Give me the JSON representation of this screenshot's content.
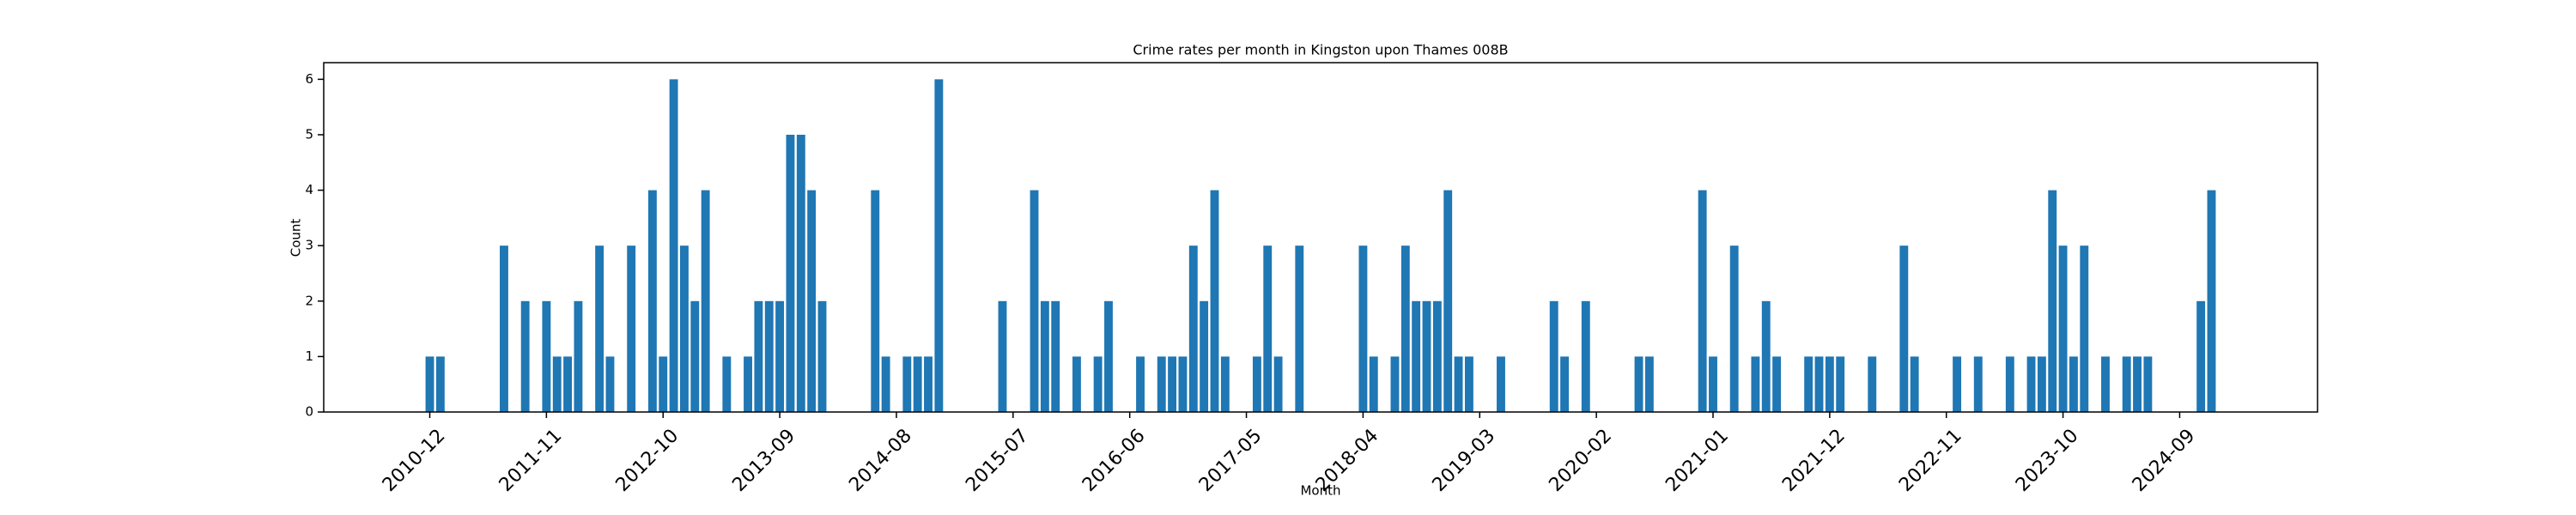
{
  "chart_data": {
    "type": "bar",
    "title": "Crime rates per month in Kingston upon Thames 008B",
    "x_label": "Month",
    "y_label": "Count",
    "color": "#1f77b4",
    "x": [
      "2010-12",
      "2011-01",
      "2011-07",
      "2011-09",
      "2011-11",
      "2011-12",
      "2012-01",
      "2012-02",
      "2012-04",
      "2012-05",
      "2012-07",
      "2012-09",
      "2012-10",
      "2012-11",
      "2012-12",
      "2013-01",
      "2013-02",
      "2013-04",
      "2013-06",
      "2013-07",
      "2013-08",
      "2013-09",
      "2013-10",
      "2013-11",
      "2013-12",
      "2014-01",
      "2014-06",
      "2014-07",
      "2014-09",
      "2014-10",
      "2014-11",
      "2014-12",
      "2015-06",
      "2015-09",
      "2015-10",
      "2015-11",
      "2016-01",
      "2016-03",
      "2016-04",
      "2016-07",
      "2016-09",
      "2016-10",
      "2016-11",
      "2016-12",
      "2017-01",
      "2017-02",
      "2017-03",
      "2017-06",
      "2017-07",
      "2017-08",
      "2017-10",
      "2018-04",
      "2018-05",
      "2018-07",
      "2018-08",
      "2018-09",
      "2018-10",
      "2018-11",
      "2018-12",
      "2019-01",
      "2019-02",
      "2019-05",
      "2019-10",
      "2019-11",
      "2020-01",
      "2020-06",
      "2020-07",
      "2020-12",
      "2021-01",
      "2021-03",
      "2021-05",
      "2021-06",
      "2021-07",
      "2021-10",
      "2021-11",
      "2021-12",
      "2022-01",
      "2022-04",
      "2022-07",
      "2022-08",
      "2022-12",
      "2023-02",
      "2023-05",
      "2023-07",
      "2023-08",
      "2023-09",
      "2023-10",
      "2023-11",
      "2023-12",
      "2024-02",
      "2024-04",
      "2024-05",
      "2024-06",
      "2024-11",
      "2024-12"
    ],
    "values": [
      1,
      1,
      3,
      2,
      2,
      1,
      1,
      2,
      3,
      1,
      3,
      4,
      1,
      6,
      3,
      2,
      4,
      1,
      1,
      2,
      2,
      2,
      5,
      5,
      4,
      2,
      4,
      1,
      1,
      1,
      1,
      6,
      2,
      4,
      2,
      2,
      1,
      1,
      2,
      1,
      1,
      1,
      1,
      3,
      2,
      4,
      1,
      1,
      3,
      1,
      3,
      3,
      1,
      1,
      3,
      2,
      2,
      2,
      4,
      1,
      1,
      1,
      2,
      1,
      2,
      1,
      1,
      4,
      1,
      3,
      1,
      2,
      1,
      1,
      1,
      1,
      1,
      1,
      3,
      1,
      1,
      1,
      1,
      1,
      1,
      4,
      3,
      1,
      3,
      1,
      1,
      1,
      1,
      2,
      4
    ],
    "xlim": [
      "2010-02",
      "2025-10"
    ],
    "xticks": [
      "2010-12",
      "2011-11",
      "2012-10",
      "2013-09",
      "2014-08",
      "2015-07",
      "2016-06",
      "2017-05",
      "2018-04",
      "2019-03",
      "2020-02",
      "2021-01",
      "2021-12",
      "2022-11",
      "2023-10",
      "2024-09"
    ],
    "ylim": [
      0,
      6.3
    ],
    "yticks": [
      0,
      1,
      2,
      3,
      4,
      5,
      6
    ]
  }
}
